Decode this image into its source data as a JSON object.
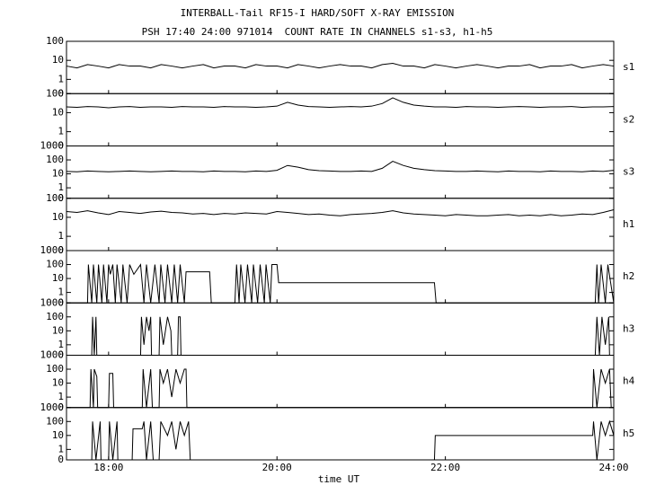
{
  "chart_data": {
    "type": "line",
    "title": "INTERBALL-Tail RF15-I HARD/SOFT X-RAY EMISSION",
    "subtitle": "PSH 17:40 24:00 971014  COUNT RATE IN CHANNELS s1-s3, h1-h5",
    "xlabel": "time UT",
    "xlim": [
      17.5,
      24
    ],
    "xticks": [
      {
        "value": 18,
        "label": "18:00"
      },
      {
        "value": 20,
        "label": "20:00"
      },
      {
        "value": 22,
        "label": "22:00"
      },
      {
        "value": 24,
        "label": "24:00"
      }
    ],
    "log_y": true,
    "series": [
      {
        "name": "s1",
        "color": "#000000",
        "ylim": [
          0,
          100
        ],
        "yticks": [
          0,
          1,
          10,
          100
        ],
        "x": [
          17.5,
          17.625,
          17.75,
          17.875,
          18,
          18.125,
          18.25,
          18.375,
          18.5,
          18.625,
          18.75,
          18.875,
          19,
          19.125,
          19.25,
          19.375,
          19.5,
          19.625,
          19.75,
          19.875,
          20,
          20.125,
          20.25,
          20.375,
          20.5,
          20.625,
          20.75,
          20.875,
          21,
          21.125,
          21.25,
          21.375,
          21.5,
          21.625,
          21.75,
          21.875,
          22,
          22.125,
          22.25,
          22.375,
          22.5,
          22.625,
          22.75,
          22.875,
          23,
          23.125,
          23.25,
          23.375,
          23.5,
          23.625,
          23.75,
          23.875,
          24
        ],
        "values": [
          5,
          4,
          6,
          5,
          4,
          6,
          5,
          5,
          4,
          6,
          5,
          4,
          5,
          6,
          4,
          5,
          5,
          4,
          6,
          5,
          5,
          4,
          6,
          5,
          4,
          5,
          6,
          5,
          5,
          4,
          6,
          7,
          5,
          5,
          4,
          6,
          5,
          4,
          5,
          6,
          5,
          4,
          5,
          5,
          6,
          4,
          5,
          5,
          6,
          4,
          5,
          6,
          5
        ]
      },
      {
        "name": "s2",
        "color": "#000000",
        "ylim": [
          0,
          100
        ],
        "yticks": [
          0,
          1,
          10,
          100
        ],
        "x": [
          17.5,
          17.625,
          17.75,
          17.875,
          18,
          18.125,
          18.25,
          18.375,
          18.5,
          18.625,
          18.75,
          18.875,
          19,
          19.125,
          19.25,
          19.375,
          19.5,
          19.625,
          19.75,
          19.875,
          20,
          20.125,
          20.25,
          20.375,
          20.5,
          20.625,
          20.75,
          20.875,
          21,
          21.125,
          21.25,
          21.375,
          21.5,
          21.625,
          21.75,
          21.875,
          22,
          22.125,
          22.25,
          22.375,
          22.5,
          22.625,
          22.75,
          22.875,
          23,
          23.125,
          23.25,
          23.375,
          23.5,
          23.625,
          23.75,
          23.875,
          24
        ],
        "values": [
          20,
          19,
          21,
          20,
          18,
          20,
          21,
          19,
          20,
          20,
          19,
          21,
          20,
          20,
          19,
          21,
          20,
          20,
          19,
          20,
          22,
          35,
          25,
          21,
          20,
          19,
          20,
          21,
          20,
          22,
          30,
          60,
          35,
          25,
          22,
          20,
          20,
          19,
          21,
          20,
          20,
          19,
          20,
          21,
          20,
          19,
          20,
          20,
          21,
          19,
          20,
          20,
          21
        ]
      },
      {
        "name": "s3",
        "color": "#000000",
        "ylim": [
          0,
          1000
        ],
        "yticks": [
          0,
          1,
          10,
          100,
          1000
        ],
        "x": [
          17.5,
          17.625,
          17.75,
          17.875,
          18,
          18.125,
          18.25,
          18.375,
          18.5,
          18.625,
          18.75,
          18.875,
          19,
          19.125,
          19.25,
          19.375,
          19.5,
          19.625,
          19.75,
          19.875,
          20,
          20.125,
          20.25,
          20.375,
          20.5,
          20.625,
          20.75,
          20.875,
          21,
          21.125,
          21.25,
          21.375,
          21.5,
          21.625,
          21.75,
          21.875,
          22,
          22.125,
          22.25,
          22.375,
          22.5,
          22.625,
          22.75,
          22.875,
          23,
          23.125,
          23.25,
          23.375,
          23.5,
          23.625,
          23.75,
          23.875,
          24
        ],
        "values": [
          15,
          14,
          16,
          15,
          14,
          15,
          16,
          15,
          14,
          15,
          16,
          15,
          15,
          14,
          16,
          15,
          15,
          14,
          16,
          15,
          18,
          40,
          30,
          20,
          17,
          16,
          15,
          15,
          16,
          15,
          25,
          80,
          40,
          25,
          20,
          17,
          16,
          15,
          15,
          16,
          15,
          14,
          16,
          15,
          15,
          14,
          16,
          15,
          15,
          14,
          16,
          15,
          18
        ]
      },
      {
        "name": "h1",
        "color": "#000000",
        "ylim": [
          0,
          100
        ],
        "yticks": [
          0,
          1,
          10,
          100
        ],
        "x": [
          17.5,
          17.625,
          17.75,
          17.875,
          18,
          18.125,
          18.25,
          18.375,
          18.5,
          18.625,
          18.75,
          18.875,
          19,
          19.125,
          19.25,
          19.375,
          19.5,
          19.625,
          19.75,
          19.875,
          20,
          20.125,
          20.25,
          20.375,
          20.5,
          20.625,
          20.75,
          20.875,
          21,
          21.125,
          21.25,
          21.375,
          21.5,
          21.625,
          21.75,
          21.875,
          22,
          22.125,
          22.25,
          22.375,
          22.5,
          22.625,
          22.75,
          22.875,
          23,
          23.125,
          23.25,
          23.375,
          23.5,
          23.625,
          23.75,
          23.875,
          24
        ],
        "values": [
          20,
          18,
          22,
          17,
          14,
          20,
          18,
          16,
          19,
          21,
          18,
          17,
          15,
          16,
          14,
          16,
          15,
          17,
          16,
          15,
          20,
          18,
          16,
          14,
          15,
          13,
          12,
          14,
          15,
          16,
          18,
          22,
          17,
          15,
          14,
          13,
          12,
          14,
          13,
          12,
          12,
          13,
          14,
          12,
          13,
          12,
          14,
          12,
          13,
          15,
          14,
          18,
          25
        ]
      },
      {
        "name": "h2",
        "color": "#000000",
        "ylim": [
          0,
          1000
        ],
        "yticks": [
          0,
          1,
          10,
          100,
          1000
        ],
        "x": [
          17.5,
          17.75,
          17.76,
          17.8,
          17.82,
          17.86,
          17.88,
          17.92,
          17.94,
          17.98,
          18.0,
          18.02,
          18.05,
          18.08,
          18.1,
          18.15,
          18.17,
          18.22,
          18.25,
          18.3,
          18.38,
          18.42,
          18.45,
          18.5,
          18.55,
          18.6,
          18.62,
          18.67,
          18.7,
          18.75,
          18.78,
          18.82,
          18.85,
          18.9,
          18.92,
          19.2,
          19.22,
          19.5,
          19.52,
          19.55,
          19.57,
          19.62,
          19.65,
          19.7,
          19.72,
          19.77,
          19.8,
          19.85,
          19.87,
          19.92,
          19.94,
          20.0,
          20.02,
          21.87,
          21.89,
          23.78,
          23.8,
          23.82,
          23.85,
          23.9,
          23.93,
          24
        ],
        "values": [
          0,
          0,
          100,
          0,
          100,
          0,
          100,
          0,
          100,
          0,
          100,
          20,
          100,
          0,
          100,
          0,
          100,
          0,
          100,
          20,
          100,
          0,
          100,
          0,
          100,
          0,
          100,
          0,
          100,
          0,
          100,
          0,
          100,
          0,
          30,
          30,
          0,
          0,
          100,
          0,
          100,
          0,
          100,
          0,
          100,
          0,
          100,
          0,
          100,
          0,
          100,
          100,
          5,
          5,
          0,
          0,
          100,
          0,
          100,
          0,
          100,
          0
        ]
      },
      {
        "name": "h3",
        "color": "#000000",
        "ylim": [
          0,
          1000
        ],
        "yticks": [
          0,
          1,
          10,
          100,
          1000
        ],
        "x": [
          17.5,
          17.8,
          17.81,
          17.83,
          17.85,
          17.86,
          18.38,
          18.39,
          18.42,
          18.45,
          18.48,
          18.5,
          18.51,
          18.6,
          18.61,
          18.65,
          18.7,
          18.74,
          18.75,
          18.82,
          18.83,
          18.85,
          18.86,
          23.78,
          23.8,
          23.83,
          23.86,
          23.9,
          23.94,
          23.95,
          24
        ],
        "values": [
          0,
          0,
          100,
          0,
          100,
          0,
          0,
          100,
          1,
          100,
          10,
          100,
          0,
          0,
          100,
          1,
          100,
          10,
          0,
          0,
          100,
          100,
          0,
          0,
          100,
          0,
          100,
          1,
          100,
          0,
          0
        ]
      },
      {
        "name": "h4",
        "color": "#000000",
        "ylim": [
          0,
          1000
        ],
        "yticks": [
          0,
          1,
          10,
          100,
          1000
        ],
        "x": [
          17.5,
          17.78,
          17.79,
          17.82,
          17.83,
          17.86,
          17.87,
          18.0,
          18.01,
          18.05,
          18.06,
          18.4,
          18.41,
          18.45,
          18.5,
          18.52,
          18.53,
          18.6,
          18.61,
          18.65,
          18.7,
          18.75,
          18.8,
          18.85,
          18.9,
          18.92,
          18.93,
          23.75,
          23.76,
          23.8,
          23.85,
          23.9,
          23.95,
          23.97,
          24
        ],
        "values": [
          0,
          0,
          100,
          0,
          100,
          30,
          0,
          0,
          50,
          50,
          0,
          0,
          100,
          0,
          100,
          0,
          0,
          0,
          100,
          10,
          100,
          1,
          100,
          10,
          100,
          100,
          0,
          0,
          100,
          0,
          100,
          10,
          100,
          0,
          0
        ]
      },
      {
        "name": "h5",
        "color": "#000000",
        "ylim": [
          0,
          1000
        ],
        "yticks": [
          0,
          1,
          10,
          100,
          1000
        ],
        "x": [
          17.5,
          17.8,
          17.81,
          17.85,
          17.9,
          17.91,
          18.0,
          18.01,
          18.05,
          18.1,
          18.11,
          18.28,
          18.29,
          18.4,
          18.42,
          18.45,
          18.5,
          18.53,
          18.6,
          18.62,
          18.7,
          18.75,
          18.8,
          18.85,
          18.9,
          18.95,
          18.97,
          21.87,
          21.88,
          23.75,
          23.76,
          23.8,
          23.85,
          23.9,
          23.95,
          24
        ],
        "values": [
          0,
          0,
          100,
          0,
          100,
          0,
          0,
          100,
          0,
          100,
          0,
          0,
          30,
          30,
          100,
          0,
          100,
          0,
          0,
          100,
          10,
          100,
          1,
          100,
          10,
          100,
          0,
          0,
          10,
          10,
          100,
          0,
          100,
          10,
          100,
          10
        ]
      }
    ]
  }
}
